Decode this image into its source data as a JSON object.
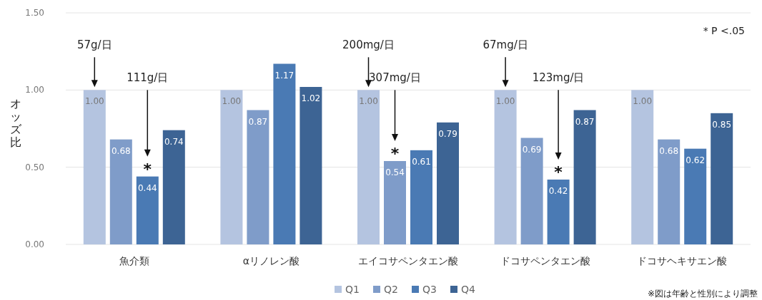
{
  "chart_data": {
    "type": "bar",
    "ylabel": "オッズ比",
    "categories": [
      "魚介類",
      "αリノレン酸",
      "エイコサペンタエン酸",
      "ドコサペンタエン酸",
      "ドコサヘキサエン酸"
    ],
    "series": [
      {
        "name": "Q1",
        "color": "#b4c4e0",
        "values": [
          1.0,
          1.0,
          1.0,
          1.0,
          1.0
        ],
        "value_labels": [
          "1.00",
          "1.00",
          "1.00",
          "1.00",
          "1.00"
        ]
      },
      {
        "name": "Q2",
        "color": "#7f9cc9",
        "values": [
          0.68,
          0.87,
          0.54,
          0.69,
          0.68
        ],
        "value_labels": [
          "0.68",
          "0.87",
          "0.54",
          "0.69",
          "0.68"
        ]
      },
      {
        "name": "Q3",
        "color": "#4a7ab4",
        "values": [
          0.44,
          1.17,
          0.61,
          0.42,
          0.62
        ],
        "value_labels": [
          "0.44",
          "1.17",
          "0.61",
          "0.42",
          "0.62"
        ]
      },
      {
        "name": "Q4",
        "color": "#3d6494",
        "values": [
          0.74,
          1.02,
          0.79,
          0.87,
          0.85
        ],
        "value_labels": [
          "0.74",
          "1.02",
          "0.79",
          "0.87",
          "0.85"
        ]
      }
    ],
    "ylim": [
      0,
      1.5
    ],
    "yticks": [
      {
        "value": 0,
        "label": "0.00"
      },
      {
        "value": 0.5,
        "label": "0.50"
      },
      {
        "value": 1,
        "label": "1.00"
      },
      {
        "value": 1.5,
        "label": "1.50"
      }
    ],
    "grid": "y",
    "legend": "bottom",
    "annotations": [
      "57g/日",
      "111g/日",
      "*",
      "200mg/日",
      "307mg/日",
      "*",
      "67mg/日",
      "123mg/日",
      "*",
      "* P <.05",
      "※図は年齢と性別により調整"
    ]
  }
}
